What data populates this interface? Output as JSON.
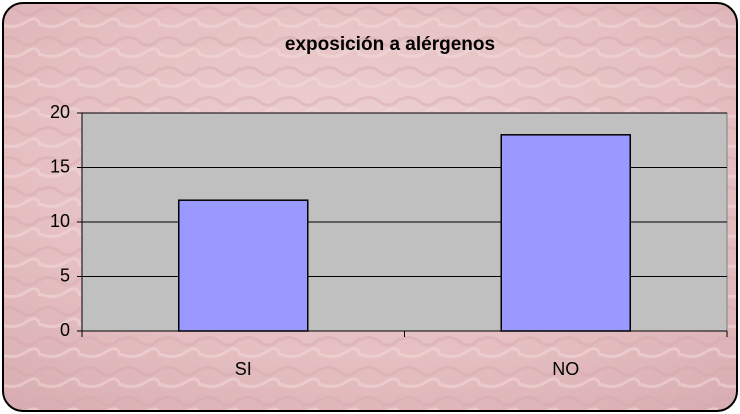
{
  "chart_data": {
    "type": "bar",
    "title": "exposición a alérgenos",
    "categories": [
      "SI",
      "NO"
    ],
    "values": [
      12,
      18
    ],
    "color": "#9999ff",
    "ylim": [
      0,
      20
    ],
    "yticks": [
      0,
      5,
      10,
      15,
      20
    ],
    "grid": true
  }
}
